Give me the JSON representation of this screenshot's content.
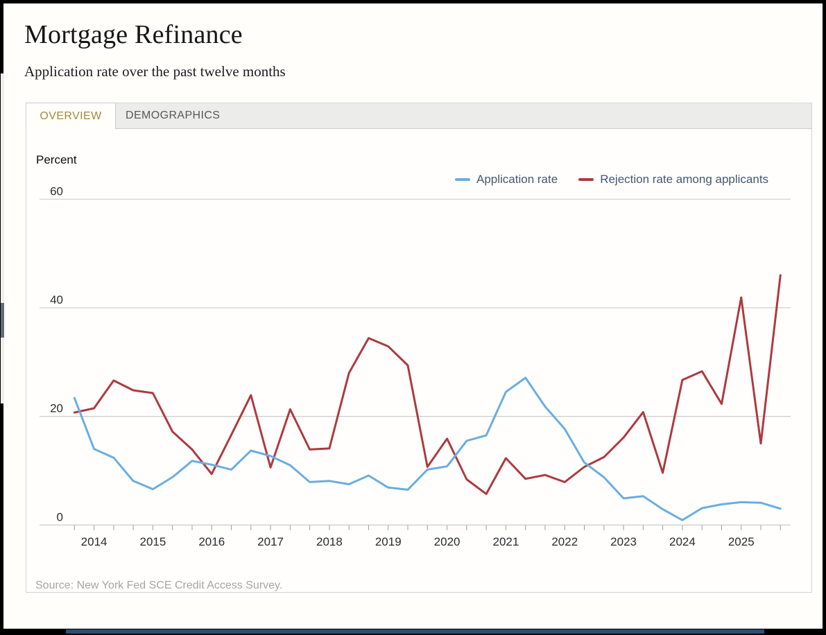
{
  "header": {
    "title": "Mortgage Refinance",
    "subtitle": "Application rate over the past twelve months"
  },
  "tabs": [
    {
      "label": "OVERVIEW",
      "active": true
    },
    {
      "label": "DEMOGRAPHICS",
      "active": false
    }
  ],
  "footer": {
    "source": "Source: New York Fed SCE Credit Access Survey."
  },
  "chart_data": {
    "type": "line",
    "unit_label": "Percent",
    "ylabel": "Percent",
    "ylim": [
      0,
      60
    ],
    "yticks": [
      0,
      20,
      40,
      60
    ],
    "grid": "horizontal",
    "legend_position": "top-right",
    "x": [
      "Oct 2013",
      "Feb 2014",
      "Jun 2014",
      "Oct 2014",
      "Feb 2015",
      "Jun 2015",
      "Oct 2015",
      "Feb 2016",
      "Jun 2016",
      "Oct 2016",
      "Feb 2017",
      "Jun 2017",
      "Oct 2017",
      "Feb 2018",
      "Jun 2018",
      "Oct 2018",
      "Feb 2019",
      "Jun 2019",
      "Oct 2019",
      "Feb 2020",
      "Jun 2020",
      "Oct 2020",
      "Feb 2021",
      "Jun 2021",
      "Oct 2021",
      "Feb 2022",
      "Jun 2022",
      "Oct 2022",
      "Feb 2023",
      "Jun 2023",
      "Oct 2023",
      "Feb 2024",
      "Jun 2024",
      "Oct 2024",
      "Feb 2025",
      "Jun 2025",
      "Oct 2025"
    ],
    "year_labels": [
      "2014",
      "2015",
      "2016",
      "2017",
      "2018",
      "2019",
      "2020",
      "2021",
      "2022",
      "2023",
      "2024",
      "2025"
    ],
    "series": [
      {
        "name": "Application rate",
        "color": "#6aade0",
        "values": [
          23.4,
          14.0,
          12.4,
          8.1,
          6.6,
          8.8,
          11.8,
          11.1,
          10.2,
          13.7,
          12.7,
          11.0,
          7.9,
          8.1,
          7.5,
          9.1,
          6.9,
          6.5,
          10.2,
          10.8,
          15.5,
          16.5,
          24.5,
          27.1,
          21.8,
          17.7,
          11.5,
          8.8,
          4.9,
          5.3,
          2.9,
          0.9,
          3.1,
          3.8,
          4.2,
          4.1,
          3.0
        ]
      },
      {
        "name": "Rejection rate among applicants",
        "color": "#ad3a3f",
        "values": [
          20.7,
          21.5,
          26.6,
          24.8,
          24.3,
          17.2,
          13.9,
          9.4,
          16.6,
          23.9,
          10.6,
          21.3,
          13.9,
          14.1,
          28.0,
          34.4,
          32.9,
          29.4,
          10.7,
          15.9,
          8.4,
          5.7,
          12.3,
          8.5,
          9.2,
          7.9,
          10.7,
          12.5,
          16.1,
          20.8,
          9.6,
          26.7,
          28.3,
          22.3,
          41.9,
          15.0,
          46.0
        ]
      }
    ]
  },
  "colors": {
    "grid": "#cdcdcd",
    "axis": "#c4c4c4",
    "tick": "#9b9b9b",
    "axis_label": "#2b2b2b",
    "legend_text": "#44586e",
    "accent_bar": "#2d4e72"
  }
}
